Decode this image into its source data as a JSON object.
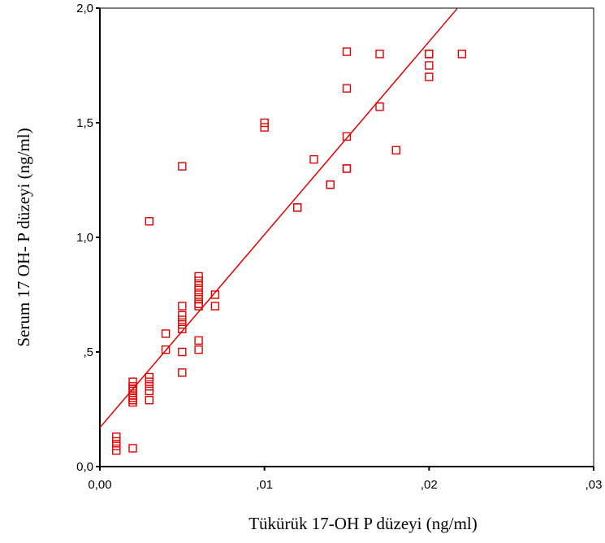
{
  "chart_data": {
    "type": "scatter",
    "xlabel": "Tükürük 17-OH P düzeyi (ng/ml)",
    "ylabel": "Serum 17 OH- P düzeyi (ng/ml)",
    "xlim": [
      0,
      0.03
    ],
    "ylim": [
      0,
      2.0
    ],
    "x_ticks": [
      0,
      0.01,
      0.02,
      0.03
    ],
    "x_tick_labels": [
      "0,00",
      ",01",
      ",02",
      ",03"
    ],
    "y_ticks": [
      0,
      0.5,
      1.0,
      1.5,
      2.0
    ],
    "y_tick_labels": [
      "0,0",
      ",5",
      "1,0",
      "1,5",
      "2,0"
    ],
    "grid": false,
    "marker_color": "#e00000",
    "fit_line": {
      "intercept": 0.17,
      "slope": 84.2,
      "x_range": [
        0,
        0.0217
      ]
    },
    "points": [
      [
        0.001,
        0.13
      ],
      [
        0.001,
        0.11
      ],
      [
        0.001,
        0.09
      ],
      [
        0.001,
        0.07
      ],
      [
        0.002,
        0.08
      ],
      [
        0.002,
        0.37
      ],
      [
        0.002,
        0.35
      ],
      [
        0.002,
        0.33
      ],
      [
        0.002,
        0.31
      ],
      [
        0.002,
        0.3
      ],
      [
        0.002,
        0.28
      ],
      [
        0.002,
        0.29
      ],
      [
        0.002,
        0.34
      ],
      [
        0.003,
        0.39
      ],
      [
        0.003,
        0.37
      ],
      [
        0.003,
        0.35
      ],
      [
        0.003,
        0.33
      ],
      [
        0.003,
        0.29
      ],
      [
        0.003,
        1.07
      ],
      [
        0.004,
        0.58
      ],
      [
        0.004,
        0.51
      ],
      [
        0.005,
        0.7
      ],
      [
        0.005,
        0.66
      ],
      [
        0.005,
        0.64
      ],
      [
        0.005,
        0.62
      ],
      [
        0.005,
        0.6
      ],
      [
        0.005,
        0.5
      ],
      [
        0.005,
        0.41
      ],
      [
        0.005,
        1.31
      ],
      [
        0.006,
        0.83
      ],
      [
        0.006,
        0.81
      ],
      [
        0.006,
        0.79
      ],
      [
        0.006,
        0.77
      ],
      [
        0.006,
        0.75
      ],
      [
        0.006,
        0.73
      ],
      [
        0.006,
        0.71
      ],
      [
        0.006,
        0.7
      ],
      [
        0.006,
        0.55
      ],
      [
        0.006,
        0.51
      ],
      [
        0.007,
        0.75
      ],
      [
        0.007,
        0.7
      ],
      [
        0.01,
        1.5
      ],
      [
        0.01,
        1.48
      ],
      [
        0.012,
        1.13
      ],
      [
        0.012,
        1.13
      ],
      [
        0.013,
        1.34
      ],
      [
        0.014,
        1.23
      ],
      [
        0.014,
        1.23
      ],
      [
        0.015,
        1.81
      ],
      [
        0.015,
        1.65
      ],
      [
        0.015,
        1.44
      ],
      [
        0.015,
        1.3
      ],
      [
        0.015,
        1.3
      ],
      [
        0.017,
        1.8
      ],
      [
        0.017,
        1.57
      ],
      [
        0.018,
        1.38
      ],
      [
        0.02,
        1.8
      ],
      [
        0.02,
        1.8
      ],
      [
        0.02,
        1.75
      ],
      [
        0.02,
        1.7
      ],
      [
        0.022,
        1.8
      ]
    ]
  }
}
